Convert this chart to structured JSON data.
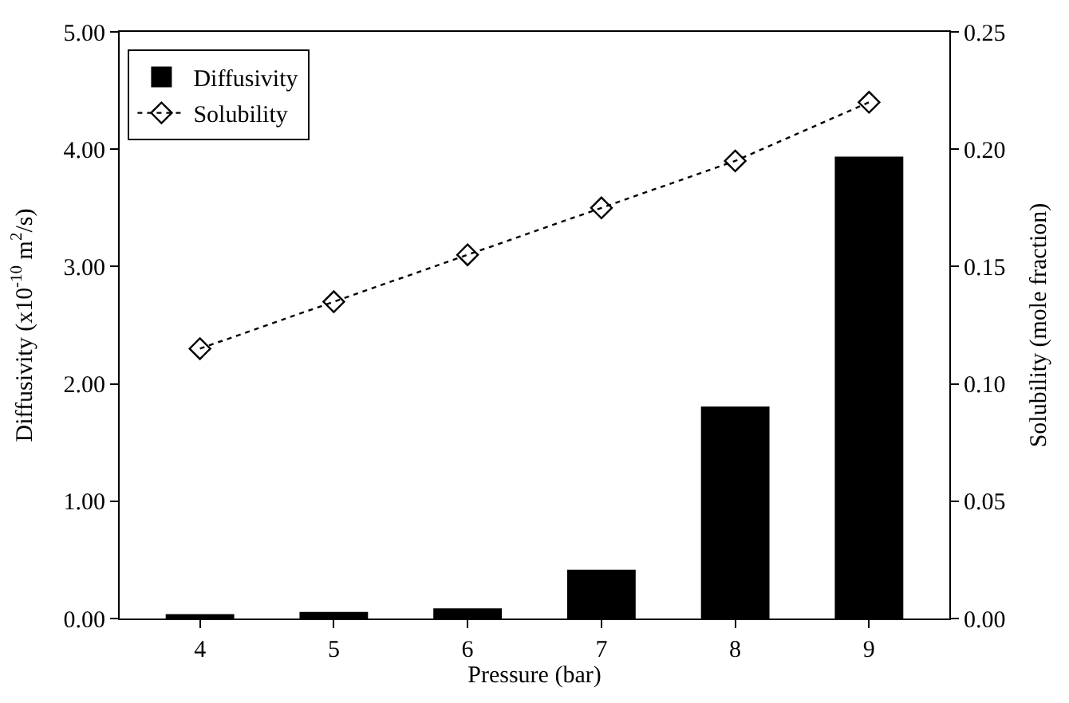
{
  "chart_data": {
    "type": "bar",
    "xlabel": "Pressure (bar)",
    "ylabel": "Diffusivity (x10$^{-10}$ m$^{2}$/s)",
    "y2label": "Solubility (mole fraction)",
    "categories": [
      "4",
      "5",
      "6",
      "7",
      "8",
      "9"
    ],
    "series": [
      {
        "name": "Diffusivity",
        "color": "#000000",
        "values": [
          0.03,
          0.05,
          0.08,
          0.41,
          1.8,
          3.93
        ]
      },
      {
        "name": "Solubility",
        "type": "line",
        "axis": "y2",
        "color": "#000000",
        "marker": "diamond",
        "line_style": "dotted",
        "values": [
          0.115,
          0.135,
          0.155,
          0.175,
          0.195,
          0.22
        ]
      }
    ],
    "ylim": [
      0,
      5
    ],
    "yticks": [
      {
        "value": 0,
        "label": "0.00"
      },
      {
        "value": 1,
        "label": "1.00"
      },
      {
        "value": 2,
        "label": "2.00"
      },
      {
        "value": 3,
        "label": "3.00"
      },
      {
        "value": 4,
        "label": "4.00"
      },
      {
        "value": 5,
        "label": "5.00"
      }
    ],
    "y2lim": [
      0,
      0.25
    ],
    "y2ticks": [
      {
        "value": 0,
        "label": "0.00"
      },
      {
        "value": 0.05,
        "label": "0.05"
      },
      {
        "value": 0.1,
        "label": "0.10"
      },
      {
        "value": 0.15,
        "label": "0.15"
      },
      {
        "value": 0.2,
        "label": "0.20"
      },
      {
        "value": 0.25,
        "label": "0.25"
      }
    ],
    "legend": "top left"
  }
}
